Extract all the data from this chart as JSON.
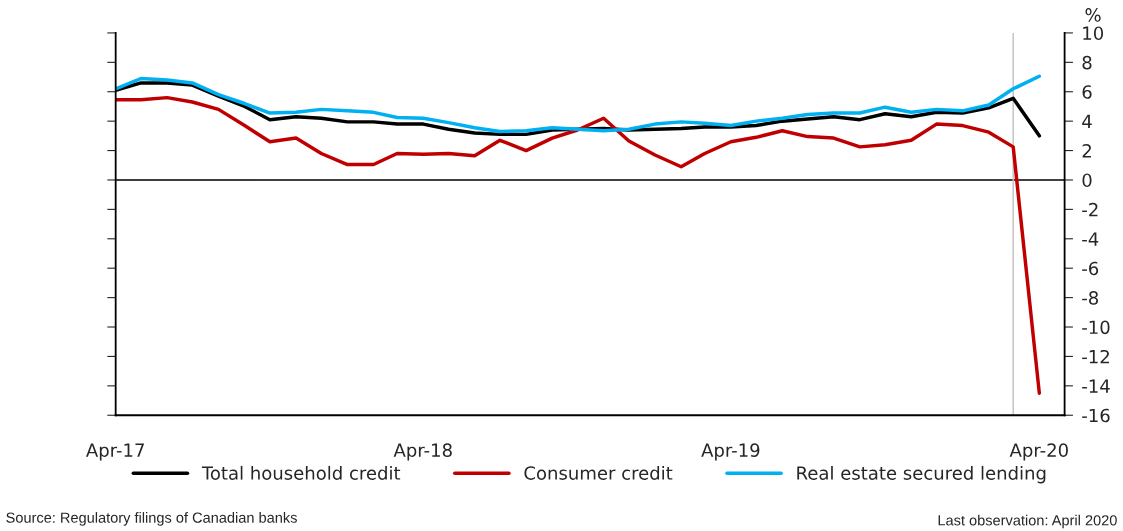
{
  "chart_data": {
    "type": "line",
    "ylabel": "%",
    "x": [
      "2017-04",
      "2017-05",
      "2017-06",
      "2017-07",
      "2017-08",
      "2017-09",
      "2017-10",
      "2017-11",
      "2017-12",
      "2018-01",
      "2018-02",
      "2018-03",
      "2018-04",
      "2018-05",
      "2018-06",
      "2018-07",
      "2018-08",
      "2018-09",
      "2018-10",
      "2018-11",
      "2018-12",
      "2019-01",
      "2019-02",
      "2019-03",
      "2019-04",
      "2019-05",
      "2019-06",
      "2019-07",
      "2019-08",
      "2019-09",
      "2019-10",
      "2019-11",
      "2019-12",
      "2020-01",
      "2020-02",
      "2020-03",
      "2020-04"
    ],
    "series": [
      {
        "name": "Total household credit",
        "color": "#000000",
        "values": [
          6.1,
          6.6,
          6.6,
          6.45,
          5.7,
          5.0,
          4.1,
          4.3,
          4.2,
          3.95,
          3.95,
          3.8,
          3.8,
          3.45,
          3.2,
          3.1,
          3.1,
          3.4,
          3.45,
          3.5,
          3.4,
          3.45,
          3.5,
          3.6,
          3.6,
          3.7,
          4.0,
          4.15,
          4.3,
          4.1,
          4.5,
          4.3,
          4.6,
          4.55,
          4.9,
          5.55,
          3.0
        ]
      },
      {
        "name": "Consumer credit",
        "color": "#c00000",
        "values": [
          5.45,
          5.45,
          5.6,
          5.3,
          4.8,
          3.7,
          2.6,
          2.85,
          1.8,
          1.05,
          1.05,
          1.8,
          1.75,
          1.8,
          1.65,
          2.7,
          2.0,
          2.85,
          3.4,
          4.2,
          2.65,
          1.7,
          0.9,
          1.8,
          2.6,
          2.9,
          3.35,
          2.95,
          2.85,
          2.25,
          2.4,
          2.7,
          3.8,
          3.7,
          3.25,
          2.25,
          -14.5
        ]
      },
      {
        "name": "Real estate secured lending",
        "color": "#00b0f0",
        "values": [
          6.2,
          6.9,
          6.8,
          6.6,
          5.8,
          5.2,
          4.55,
          4.6,
          4.8,
          4.7,
          4.6,
          4.25,
          4.2,
          3.9,
          3.55,
          3.3,
          3.35,
          3.55,
          3.45,
          3.35,
          3.45,
          3.8,
          3.95,
          3.85,
          3.7,
          4.0,
          4.2,
          4.45,
          4.55,
          4.55,
          4.95,
          4.6,
          4.8,
          4.7,
          5.1,
          6.2,
          7.05
        ]
      }
    ],
    "xlim": [
      "2017-04",
      "2020-05"
    ],
    "xticks": [
      {
        "value": "2017-04",
        "label": "Apr-17"
      },
      {
        "value": "2018-04",
        "label": "Apr-18"
      },
      {
        "value": "2019-04",
        "label": "Apr-19"
      },
      {
        "value": "2020-04",
        "label": "Apr-20"
      }
    ],
    "ylim": [
      -16,
      10
    ],
    "yticks": [
      -16,
      -14,
      -12,
      -10,
      -8,
      -6,
      -4,
      -2,
      0,
      2,
      4,
      6,
      8,
      10
    ],
    "ref_lines": [
      {
        "axis": "y",
        "value": 0,
        "color": "#000000"
      },
      {
        "axis": "x",
        "value": "2020-03",
        "color": "#bfbfbf"
      }
    ],
    "grid": false,
    "legend": "bottom",
    "marker": "none",
    "line_style": "solid",
    "annotations": [
      "Source: Regulatory filings of Canadian banks",
      "Last observation: April 2020"
    ]
  }
}
